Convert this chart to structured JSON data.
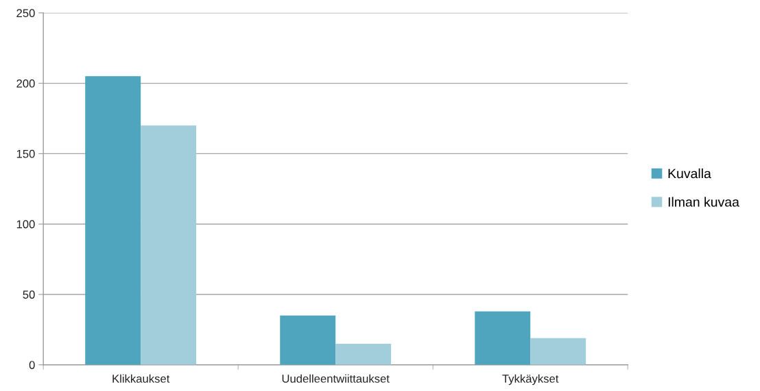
{
  "chart_data": {
    "type": "bar",
    "categories": [
      "Klikkaukset",
      "Uudelleentwiittaukset",
      "Tykkäykset"
    ],
    "series": [
      {
        "name": "Kuvalla",
        "color": "#4fa5bd",
        "values": [
          205,
          35,
          38
        ]
      },
      {
        "name": "Ilman kuvaa",
        "color": "#a2cedb",
        "values": [
          170,
          15,
          19
        ]
      }
    ],
    "ylim": [
      0,
      250
    ],
    "yticks": [
      0,
      50,
      100,
      150,
      200,
      250
    ],
    "grid": "y",
    "legend": "right"
  }
}
